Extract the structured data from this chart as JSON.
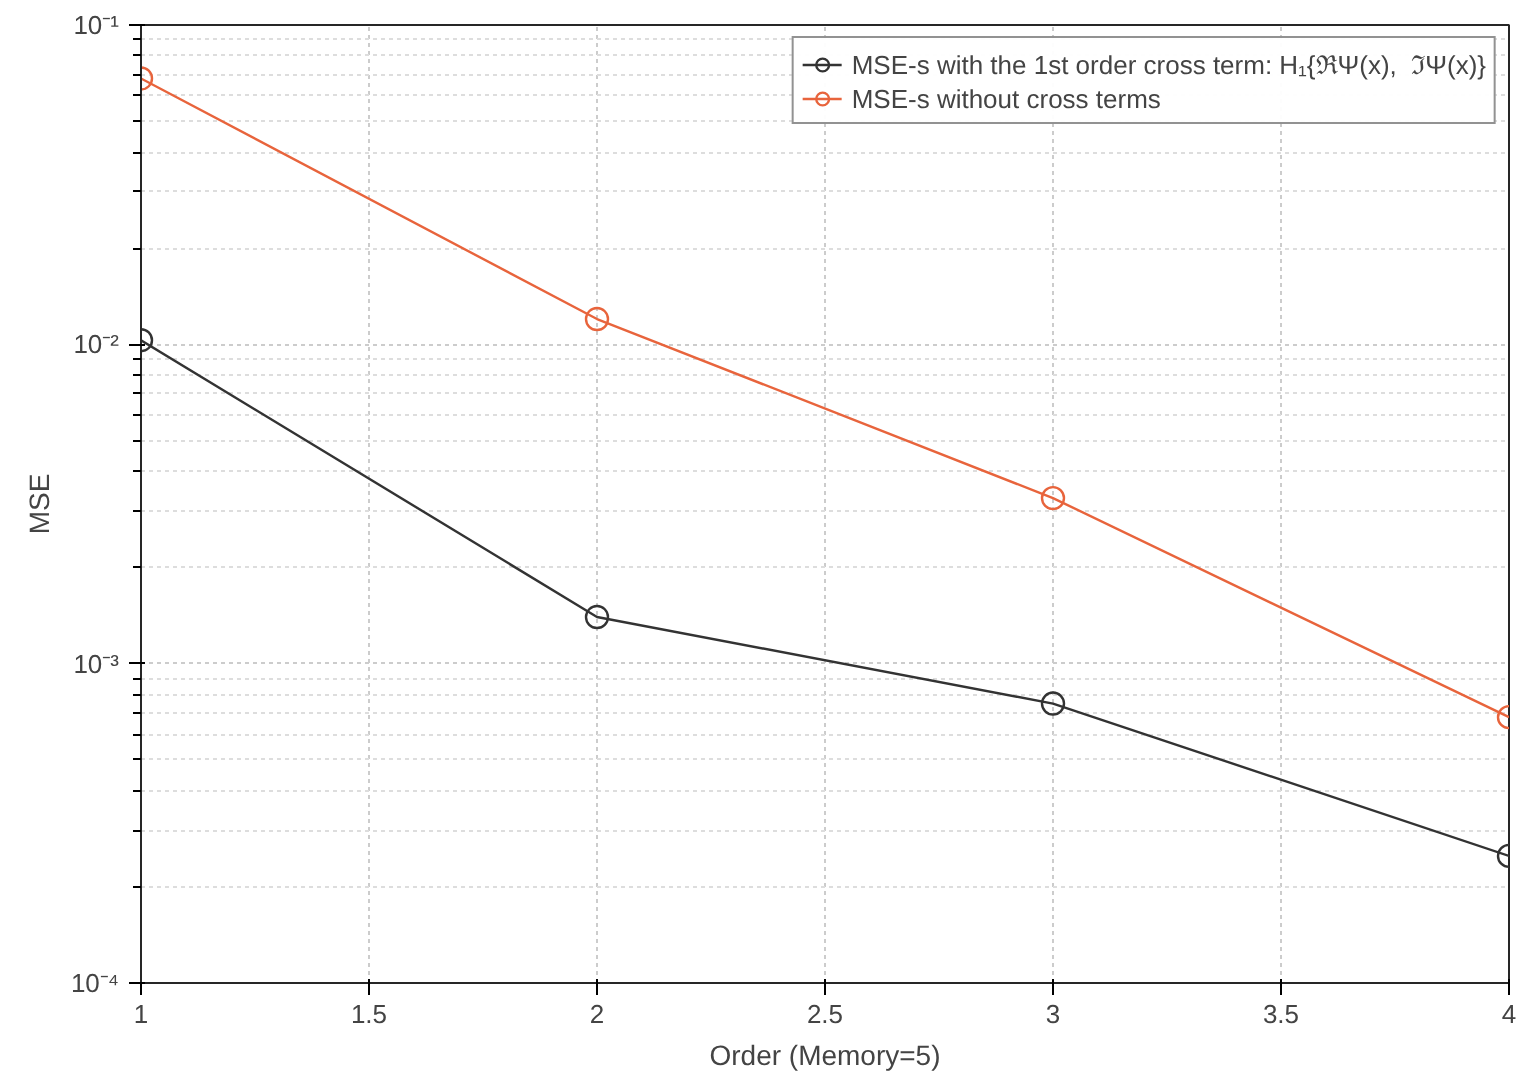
{
  "chart_data": {
    "type": "line",
    "xlabel": "Order (Memory=5)",
    "ylabel": "MSE",
    "x": [
      1,
      2,
      3,
      4
    ],
    "series": [
      {
        "name": "MSE-s with the 1st order cross term: H₁{ℜΨ(x),  ℑΨ(x)}",
        "color": "#333333",
        "values": [
          0.0103,
          0.0014,
          0.00075,
          0.00025
        ]
      },
      {
        "name": "MSE-s without cross terms",
        "color": "#e8643c",
        "values": [
          0.068,
          0.012,
          0.0033,
          0.00068
        ]
      }
    ],
    "log": "y",
    "xlim": [
      1,
      4
    ],
    "ylim": [
      0.0001,
      0.1
    ],
    "xticks": [
      1,
      1.5,
      2,
      2.5,
      3,
      3.5,
      4
    ],
    "yticks": [
      {
        "value": 0.0001,
        "label": "10⁻⁴"
      },
      {
        "value": 0.001,
        "label": "10⁻³"
      },
      {
        "value": 0.01,
        "label": "10⁻²"
      },
      {
        "value": 0.1,
        "label": "10⁻¹"
      }
    ],
    "grid": true,
    "legend": "top right",
    "marker": "circle",
    "line_style": "solid"
  }
}
